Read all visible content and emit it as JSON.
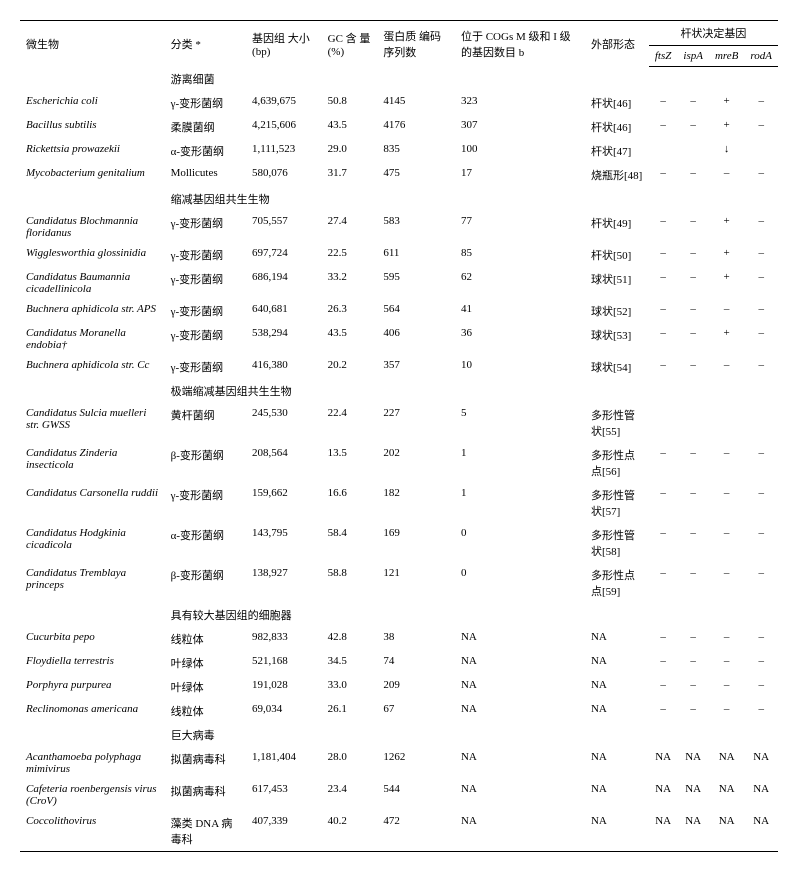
{
  "headers": {
    "organism": "微生物",
    "classification": "分类 *",
    "genome_size": "基因组\n大小(bp)",
    "gc_content": "GC 含\n量(%)",
    "protein_coding": "蛋白质\n编码\n序列数",
    "cogs": "位于 COGs\nM 级和 I 级\n的基因数目 b",
    "morphology": "外部形态",
    "shape_genes": "杆状决定基因",
    "ftsZ": "ftsZ",
    "ispA": "ispA",
    "mreB": "mreB",
    "rodA": "rodA"
  },
  "groups": [
    {
      "title": "游离细菌",
      "rows": [
        {
          "org": "Escherichia coli",
          "cls": "γ-变形菌纲",
          "size": "4,639,675",
          "gc": "50.8",
          "prot": "4145",
          "cogs": "323",
          "morph": "杆状[46]",
          "g1": "–",
          "g2": "–",
          "g3": "+",
          "g4": "–"
        },
        {
          "org": "Bacillus subtilis",
          "cls": "柔膜菌纲",
          "size": "4,215,606",
          "gc": "43.5",
          "prot": "4176",
          "cogs": "307",
          "morph": "杆状[46]",
          "g1": "–",
          "g2": "–",
          "g3": "+",
          "g4": "–"
        },
        {
          "org": "Rickettsia prowazekii",
          "cls": "α-变形菌纲",
          "size": "1,111,523",
          "gc": "29.0",
          "prot": "835",
          "cogs": "100",
          "morph": "杆状[47]",
          "g1": "",
          "g2": "",
          "g3": "↓",
          "g4": ""
        },
        {
          "org": "Mycobacterium genitalium",
          "cls": "Mollicutes",
          "size": "580,076",
          "gc": "31.7",
          "prot": "475",
          "cogs": "17",
          "morph": "烧瓶形[48]",
          "g1": "–",
          "g2": "–",
          "g3": "–",
          "g4": "–"
        }
      ]
    },
    {
      "title": "缩减基因组共生生物",
      "rows": [
        {
          "org": "Candidatus Blochmannia floridanus",
          "cls": "γ-变形菌纲",
          "size": "705,557",
          "gc": "27.4",
          "prot": "583",
          "cogs": "77",
          "morph": "杆状[49]",
          "g1": "–",
          "g2": "–",
          "g3": "+",
          "g4": "–"
        },
        {
          "org": "Wigglesworthia glossinidia",
          "cls": "γ-变形菌纲",
          "size": "697,724",
          "gc": "22.5",
          "prot": "611",
          "cogs": "85",
          "morph": "杆状[50]",
          "g1": "–",
          "g2": "–",
          "g3": "+",
          "g4": "–"
        },
        {
          "org": "Candidatus Baumannia cicadellinicola",
          "cls": "γ-变形菌纲",
          "size": "686,194",
          "gc": "33.2",
          "prot": "595",
          "cogs": "62",
          "morph": "球状[51]",
          "g1": "–",
          "g2": "–",
          "g3": "+",
          "g4": "–"
        },
        {
          "org": "Buchnera aphidicola str. APS",
          "cls": "γ-变形菌纲",
          "size": "640,681",
          "gc": "26.3",
          "prot": "564",
          "cogs": "41",
          "morph": "球状[52]",
          "g1": "–",
          "g2": "–",
          "g3": "–",
          "g4": "–"
        },
        {
          "org": "Candidatus Moranella endobia†",
          "cls": "γ-变形菌纲",
          "size": "538,294",
          "gc": "43.5",
          "prot": "406",
          "cogs": "36",
          "morph": "球状[53]",
          "g1": "–",
          "g2": "–",
          "g3": "+",
          "g4": "–"
        },
        {
          "org": "Buchnera aphidicola str. Cc",
          "cls": "γ-变形菌纲",
          "size": "416,380",
          "gc": "20.2",
          "prot": "357",
          "cogs": "10",
          "morph": "球状[54]",
          "g1": "–",
          "g2": "–",
          "g3": "–",
          "g4": "–"
        }
      ]
    },
    {
      "title": "极端缩减基因组共生生物",
      "rows": [
        {
          "org": "Candidatus Sulcia muelleri str. GWSS",
          "cls": "黄杆菌纲",
          "size": "245,530",
          "gc": "22.4",
          "prot": "227",
          "cogs": "5",
          "morph": "多形性管状[55]",
          "g1": "",
          "g2": "",
          "g3": "",
          "g4": ""
        },
        {
          "org": "Candidatus Zinderia insecticola",
          "cls": "β-变形菌纲",
          "size": "208,564",
          "gc": "13.5",
          "prot": "202",
          "cogs": "1",
          "morph": "多形性点点[56]",
          "g1": "–",
          "g2": "–",
          "g3": "–",
          "g4": "–"
        },
        {
          "org": "Candidatus Carsonella ruddii",
          "cls": "γ-变形菌纲",
          "size": "159,662",
          "gc": "16.6",
          "prot": "182",
          "cogs": "1",
          "morph": "多形性管状[57]",
          "g1": "–",
          "g2": "–",
          "g3": "–",
          "g4": "–"
        },
        {
          "org": "Candidatus Hodgkinia cicadicola",
          "cls": "α-变形菌纲",
          "size": "143,795",
          "gc": "58.4",
          "prot": "169",
          "cogs": "0",
          "morph": "多形性管状[58]",
          "g1": "–",
          "g2": "–",
          "g3": "–",
          "g4": "–"
        },
        {
          "org": "Candidatus Tremblaya princeps",
          "cls": "β-变形菌纲",
          "size": "138,927",
          "gc": "58.8",
          "prot": "121",
          "cogs": "0",
          "morph": "多形性点点[59]",
          "g1": "–",
          "g2": "–",
          "g3": "–",
          "g4": "–"
        }
      ]
    },
    {
      "title": "具有较大基因组的细胞器",
      "rows": [
        {
          "org": "Cucurbita pepo",
          "cls": "线粒体",
          "size": "982,833",
          "gc": "42.8",
          "prot": "38",
          "cogs": "NA",
          "morph": "NA",
          "g1": "–",
          "g2": "–",
          "g3": "–",
          "g4": "–"
        },
        {
          "org": "Floydiella terrestris",
          "cls": "叶绿体",
          "size": "521,168",
          "gc": "34.5",
          "prot": "74",
          "cogs": "NA",
          "morph": "NA",
          "g1": "–",
          "g2": "–",
          "g3": "–",
          "g4": "–"
        },
        {
          "org": "Porphyra purpurea",
          "cls": "叶绿体",
          "size": "191,028",
          "gc": "33.0",
          "prot": "209",
          "cogs": "NA",
          "morph": "NA",
          "g1": "–",
          "g2": "–",
          "g3": "–",
          "g4": "–"
        },
        {
          "org": "Reclinomonas americana",
          "cls": "线粒体",
          "size": "69,034",
          "gc": "26.1",
          "prot": "67",
          "cogs": "NA",
          "morph": "NA",
          "g1": "–",
          "g2": "–",
          "g3": "–",
          "g4": "–"
        }
      ]
    },
    {
      "title": "巨大病毒",
      "rows": [
        {
          "org": "Acanthamoeba polyphaga mimivirus",
          "cls": "拟菌病毒科",
          "size": "1,181,404",
          "gc": "28.0",
          "prot": "1262",
          "cogs": "NA",
          "morph": "NA",
          "g1": "NA",
          "g2": "NA",
          "g3": "NA",
          "g4": "NA"
        },
        {
          "org": "Cafeteria roenbergensis virus (CroV)",
          "cls": "拟菌病毒科",
          "size": "617,453",
          "gc": "23.4",
          "prot": "544",
          "cogs": "NA",
          "morph": "NA",
          "g1": "NA",
          "g2": "NA",
          "g3": "NA",
          "g4": "NA"
        },
        {
          "org": "Coccolithovirus",
          "cls": "藻类 DNA 病毒科",
          "size": "407,339",
          "gc": "40.2",
          "prot": "472",
          "cogs": "NA",
          "morph": "NA",
          "g1": "NA",
          "g2": "NA",
          "g3": "NA",
          "g4": "NA"
        }
      ]
    }
  ]
}
